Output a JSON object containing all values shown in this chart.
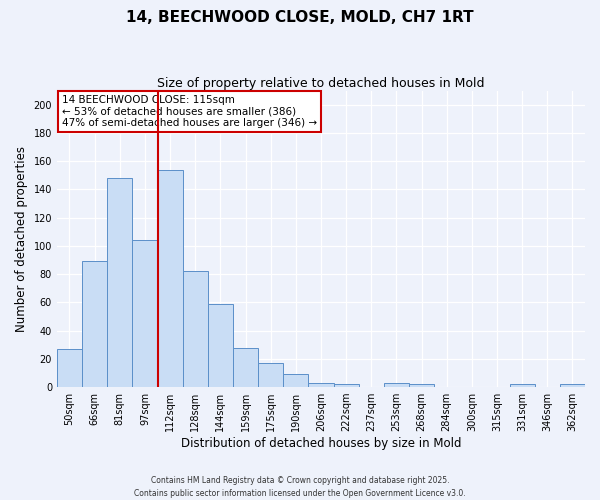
{
  "title": "14, BEECHWOOD CLOSE, MOLD, CH7 1RT",
  "subtitle": "Size of property relative to detached houses in Mold",
  "xlabel": "Distribution of detached houses by size in Mold",
  "ylabel": "Number of detached properties",
  "bar_labels": [
    "50sqm",
    "66sqm",
    "81sqm",
    "97sqm",
    "112sqm",
    "128sqm",
    "144sqm",
    "159sqm",
    "175sqm",
    "190sqm",
    "206sqm",
    "222sqm",
    "237sqm",
    "253sqm",
    "268sqm",
    "284sqm",
    "300sqm",
    "315sqm",
    "331sqm",
    "346sqm",
    "362sqm"
  ],
  "bar_values": [
    27,
    89,
    148,
    104,
    154,
    82,
    59,
    28,
    17,
    9,
    3,
    2,
    0,
    3,
    2,
    0,
    0,
    0,
    2,
    0,
    2
  ],
  "bar_color": "#c9ddf5",
  "bar_edge_color": "#5b8fc9",
  "vline_x_index": 4,
  "vline_color": "#cc0000",
  "ylim": [
    0,
    210
  ],
  "yticks": [
    0,
    20,
    40,
    60,
    80,
    100,
    120,
    140,
    160,
    180,
    200
  ],
  "annotation_title": "14 BEECHWOOD CLOSE: 115sqm",
  "annotation_line1": "← 53% of detached houses are smaller (386)",
  "annotation_line2": "47% of semi-detached houses are larger (346) →",
  "annotation_box_color": "#ffffff",
  "annotation_box_edge": "#cc0000",
  "footer1": "Contains HM Land Registry data © Crown copyright and database right 2025.",
  "footer2": "Contains public sector information licensed under the Open Government Licence v3.0.",
  "bg_color": "#eef2fb",
  "grid_color": "#ffffff",
  "title_fontsize": 11,
  "subtitle_fontsize": 9,
  "axis_label_fontsize": 8.5,
  "tick_fontsize": 7
}
